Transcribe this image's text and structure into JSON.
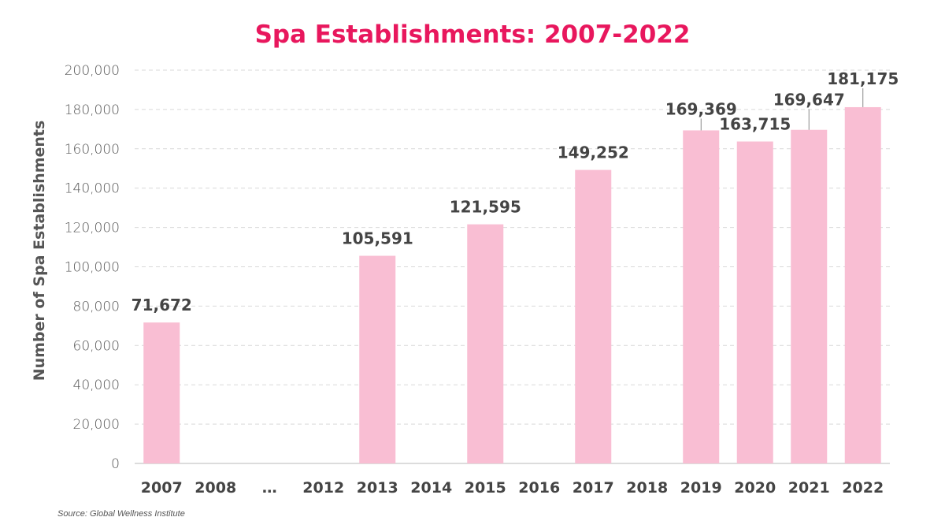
{
  "chart_data": {
    "type": "bar",
    "title": "Spa Establishments: 2007-2022",
    "xlabel": "",
    "ylabel": "Number of Spa Establishments",
    "ylim": [
      0,
      200000
    ],
    "yticks": [
      "0",
      "20,000",
      "40,000",
      "60,000",
      "80,000",
      "100,000",
      "120,000",
      "140,000",
      "160,000",
      "180,000",
      "200,000"
    ],
    "grid": true,
    "categories": [
      "2007",
      "2008",
      "…",
      "2012",
      "2013",
      "2014",
      "2015",
      "2016",
      "2017",
      "2018",
      "2019",
      "2020",
      "2021",
      "2022"
    ],
    "values": [
      71672,
      null,
      null,
      null,
      105591,
      null,
      121595,
      null,
      149252,
      null,
      169369,
      163715,
      169647,
      181175
    ],
    "data_labels": [
      "71,672",
      "",
      "",
      "",
      "105,591",
      "",
      "121,595",
      "",
      "149,252",
      "",
      "169,369",
      "163,715",
      "169,647",
      "181,175"
    ],
    "source": "Source: Global Wellness Institute"
  },
  "colors": {
    "title": "#e8175d",
    "bar": "#f9bed3",
    "text": "#444444",
    "grid": "#d9d9d9"
  }
}
